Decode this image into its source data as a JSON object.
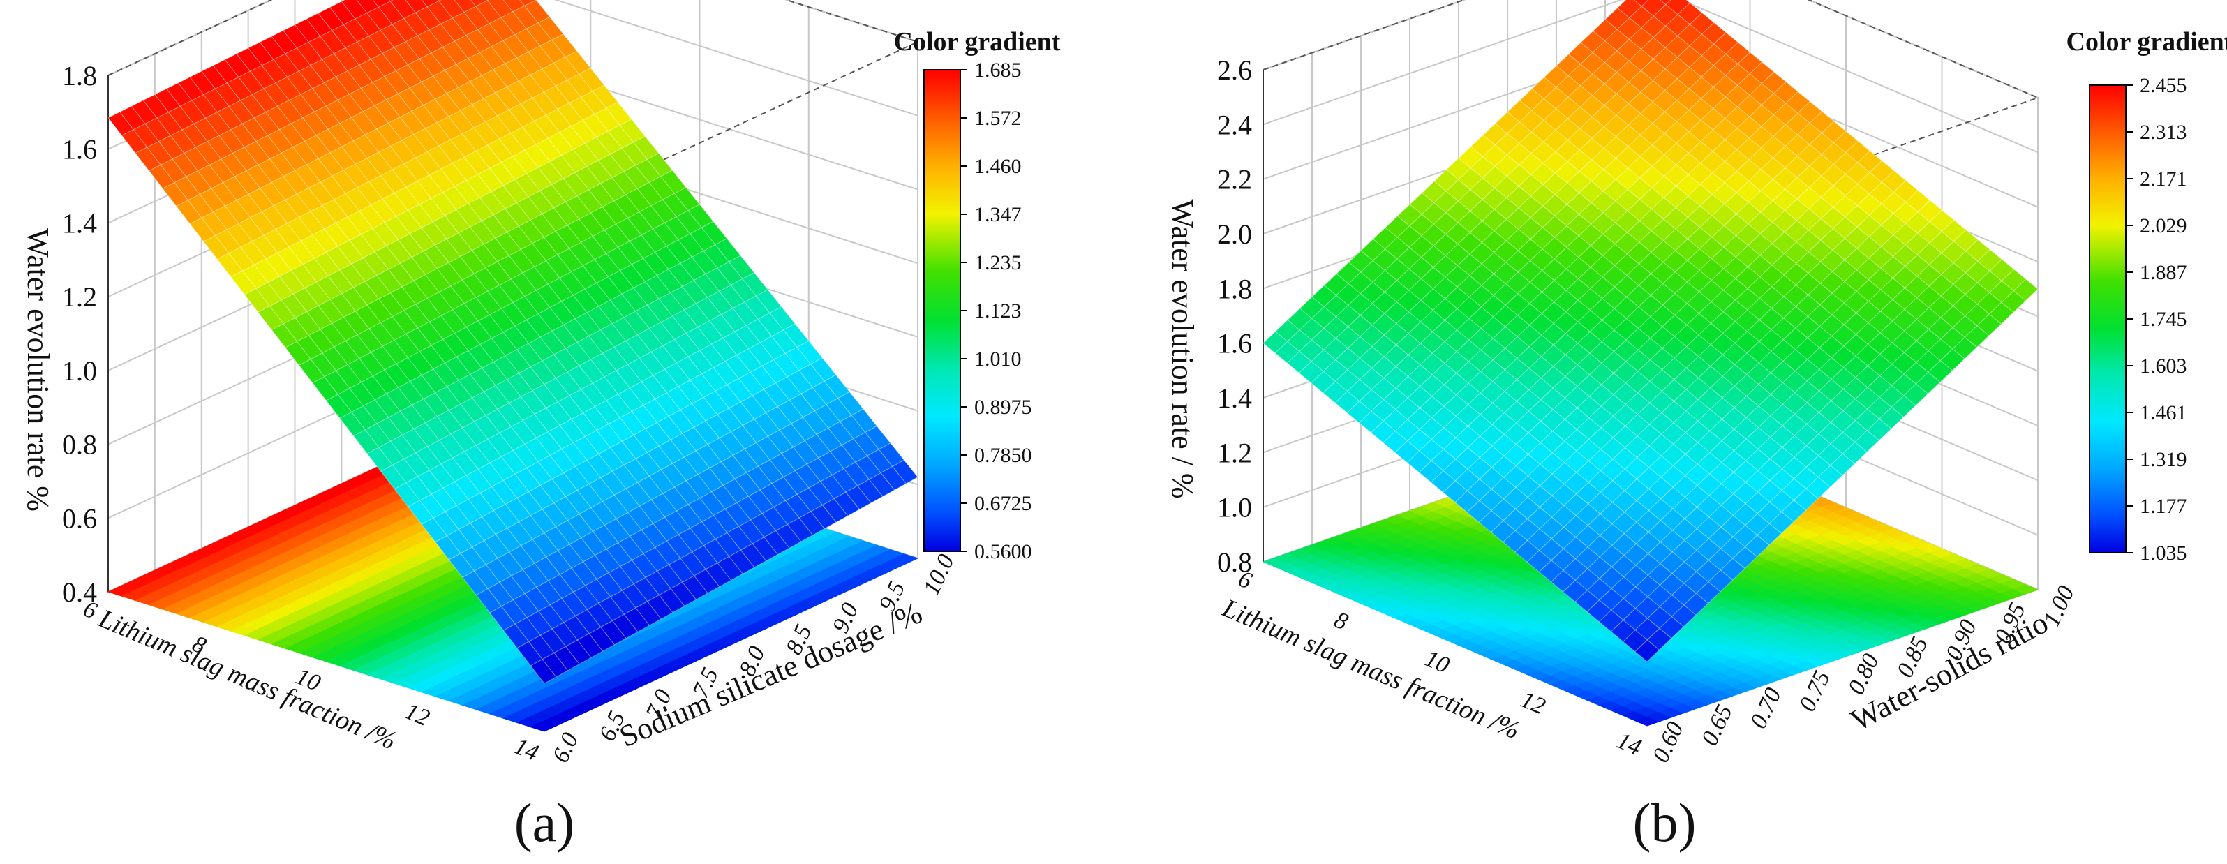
{
  "chart_data": [
    {
      "type": "surface",
      "panel_label": "(a)",
      "colorbar": {
        "title": "Color gradient",
        "ticks": [
          "1.685",
          "1.572",
          "1.460",
          "1.347",
          "1.235",
          "1.123",
          "1.010",
          "0.8975",
          "0.7850",
          "0.6725",
          "0.5600"
        ],
        "range": [
          0.56,
          1.685
        ]
      },
      "z_axis": {
        "label": "Water evolution rate %",
        "ticks": [
          "0.4",
          "0.6",
          "0.8",
          "1.0",
          "1.2",
          "1.4",
          "1.6",
          "1.8"
        ],
        "range": [
          0.4,
          1.8
        ]
      },
      "x_axis": {
        "label": "Lithium slag mass fraction /%",
        "ticks": [
          "6",
          "8",
          "10",
          "12",
          "14"
        ],
        "range": [
          6,
          14
        ]
      },
      "y_axis": {
        "label": "Sodium silicate dosage /%",
        "ticks": [
          "6.0",
          "6.5",
          "7.0",
          "7.5",
          "8.0",
          "8.5",
          "9.0",
          "9.5",
          "10.0"
        ],
        "range": [
          6.0,
          10.0
        ]
      },
      "surface_corners": [
        {
          "x": 6,
          "y": 6.0,
          "z": 1.685
        },
        {
          "x": 6,
          "y": 10.0,
          "z": 1.72
        },
        {
          "x": 14,
          "y": 6.0,
          "z": 0.53
        },
        {
          "x": 14,
          "y": 10.0,
          "z": 0.62
        }
      ]
    },
    {
      "type": "surface",
      "panel_label": "(b)",
      "colorbar": {
        "title": "Color gradient",
        "ticks": [
          "2.455",
          "2.313",
          "2.171",
          "2.029",
          "1.887",
          "1.745",
          "1.603",
          "1.461",
          "1.319",
          "1.177",
          "1.035"
        ],
        "range": [
          1.035,
          2.455
        ]
      },
      "z_axis": {
        "label": "Water evolution rate / %",
        "ticks": [
          "0.8",
          "1.0",
          "1.2",
          "1.4",
          "1.6",
          "1.8",
          "2.0",
          "2.2",
          "2.4",
          "2.6"
        ],
        "range": [
          0.8,
          2.6
        ]
      },
      "x_axis": {
        "label": "Lithium slag mass fraction /%",
        "ticks": [
          "6",
          "8",
          "10",
          "12",
          "14"
        ],
        "range": [
          6,
          14
        ]
      },
      "y_axis": {
        "label": "Water-solids ratio",
        "ticks": [
          "0.60",
          "0.65",
          "0.70",
          "0.75",
          "0.80",
          "0.85",
          "0.90",
          "0.95",
          "1.00"
        ],
        "range": [
          0.6,
          1.0
        ]
      },
      "surface_corners": [
        {
          "x": 6,
          "y": 0.6,
          "z": 1.6
        },
        {
          "x": 6,
          "y": 1.0,
          "z": 2.455
        },
        {
          "x": 14,
          "y": 0.6,
          "z": 1.035
        },
        {
          "x": 14,
          "y": 1.0,
          "z": 1.9
        }
      ]
    }
  ]
}
